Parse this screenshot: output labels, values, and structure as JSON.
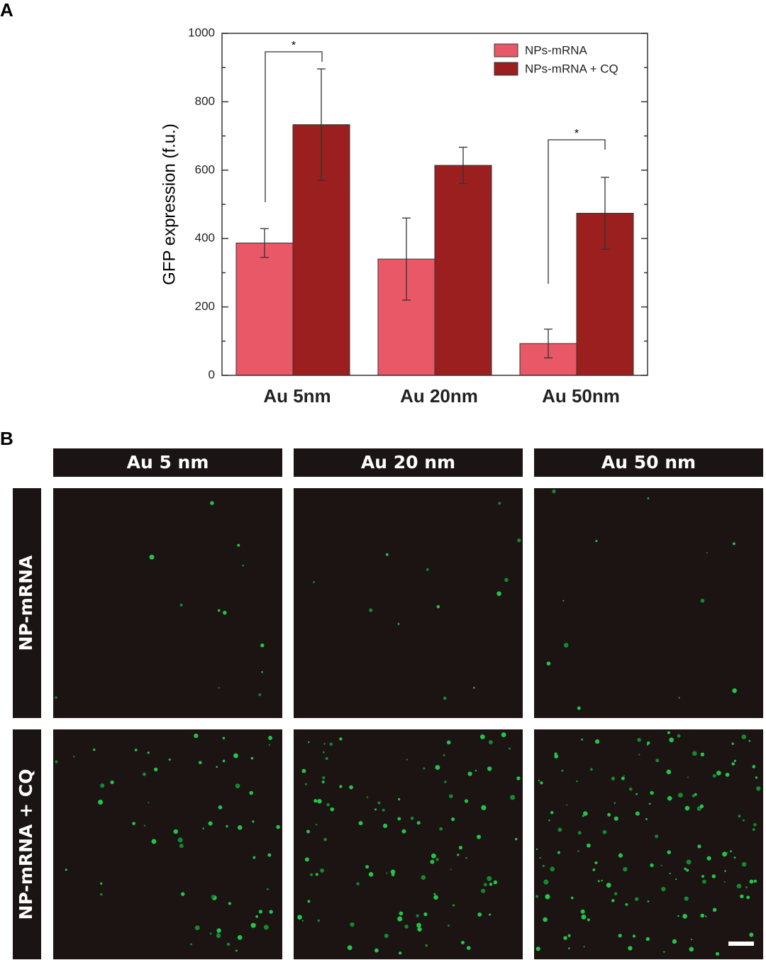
{
  "panel_a_label": "A",
  "chart_data": {
    "type": "bar",
    "ylabel": "GFP expression (f.u.)",
    "categories": [
      "Au 5nm",
      "Au 20nm",
      "Au 50nm"
    ],
    "series": [
      {
        "name": "NPs-mRNA",
        "color": "#e85867",
        "values": [
          387,
          340,
          93
        ],
        "errors": [
          42,
          120,
          42
        ]
      },
      {
        "name": "NPs-mRNA + CQ",
        "color": "#9b1f1f",
        "values": [
          733,
          614,
          474
        ],
        "errors": [
          163,
          53,
          105
        ]
      }
    ],
    "ylim": [
      0,
      1000
    ],
    "yticks": [
      0,
      200,
      400,
      600,
      800,
      1000
    ],
    "legend": "upper right",
    "annotations": [
      "*",
      "*"
    ]
  },
  "panel_b": {
    "label": "B",
    "columns": [
      "Au 5 nm",
      "Au 20 nm",
      "Au 50 nm"
    ],
    "rows": [
      "NP-mRNA",
      "NP-mRNA + CQ"
    ]
  }
}
